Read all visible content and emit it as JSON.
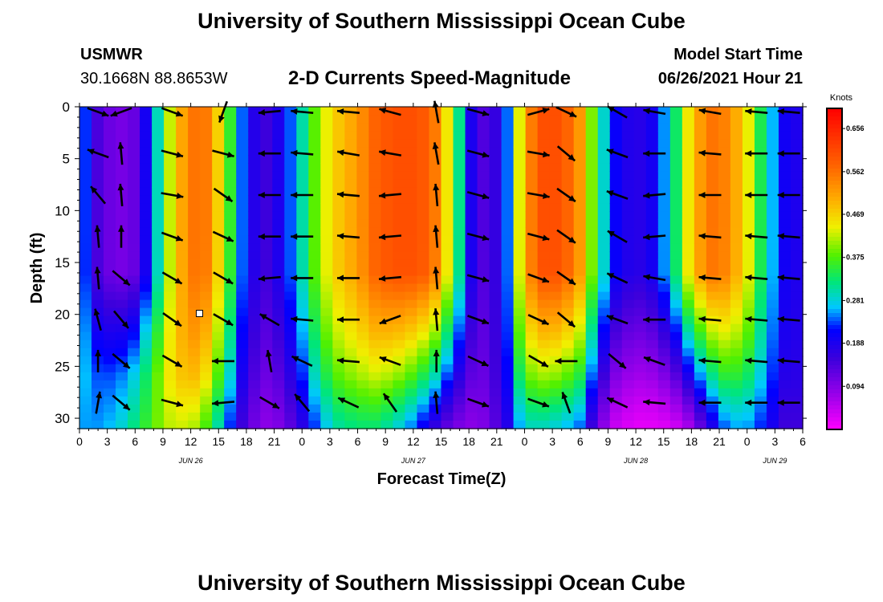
{
  "page": {
    "title": "University of Southern Mississippi Ocean Cube",
    "footer_title": "University of Southern Mississippi Ocean Cube",
    "station": "USMWR",
    "location": "30.1668N  88.8653W",
    "plot_title": "2-D Currents Speed-Magnitude",
    "model_start_label": "Model Start Time",
    "model_start_value": "06/26/2021 Hour 21"
  },
  "chart_data": {
    "type": "heatmap",
    "title": "2-D Currents Speed-Magnitude",
    "xlabel": "Forecast Time(Z)",
    "ylabel": "Depth (ft)",
    "x_ticks": [
      "0",
      "3",
      "6",
      "9",
      "12",
      "15",
      "18",
      "21",
      "0",
      "3",
      "6",
      "9",
      "12",
      "15",
      "18",
      "21",
      "0",
      "3",
      "6",
      "9",
      "12",
      "15",
      "18",
      "21",
      "0",
      "3",
      "6"
    ],
    "date_labels": [
      {
        "label": "JUN 26",
        "hour": 12
      },
      {
        "label": "JUN 27",
        "hour": 36
      },
      {
        "label": "JUN 28",
        "hour": 60
      },
      {
        "label": "JUN 29",
        "hour": 75
      }
    ],
    "y_ticks": [
      0,
      5,
      10,
      15,
      20,
      25,
      30
    ],
    "ylim": [
      0,
      31
    ],
    "xlim_hours": [
      0,
      78
    ],
    "colorbar": {
      "label": "Knots",
      "ticks": [
        "0.656",
        "0.562",
        "0.469",
        "0.375",
        "0.281",
        "0.188",
        "0.094"
      ],
      "min": 0.0,
      "max": 0.7
    },
    "time_hours": [
      0,
      2,
      4,
      6,
      8,
      10,
      12,
      14,
      16,
      18,
      20,
      22,
      24,
      26,
      28,
      30,
      32,
      34,
      36,
      38,
      40,
      42,
      44,
      46,
      48,
      50,
      52,
      54,
      56,
      58,
      60,
      62,
      64,
      66,
      68,
      70,
      72,
      74,
      76,
      78
    ],
    "surface_speed": [
      0.27,
      0.14,
      0.1,
      0.12,
      0.25,
      0.45,
      0.56,
      0.55,
      0.38,
      0.2,
      0.15,
      0.2,
      0.3,
      0.42,
      0.48,
      0.52,
      0.58,
      0.6,
      0.6,
      0.58,
      0.42,
      0.2,
      0.12,
      0.22,
      0.52,
      0.6,
      0.6,
      0.52,
      0.32,
      0.2,
      0.17,
      0.2,
      0.3,
      0.48,
      0.56,
      0.54,
      0.45,
      0.3,
      0.2,
      0.18
    ],
    "bottom_speed": [
      0.3,
      0.3,
      0.32,
      0.38,
      0.45,
      0.5,
      0.5,
      0.42,
      0.28,
      0.15,
      0.1,
      0.12,
      0.2,
      0.3,
      0.36,
      0.38,
      0.38,
      0.34,
      0.28,
      0.2,
      0.13,
      0.1,
      0.12,
      0.2,
      0.34,
      0.34,
      0.32,
      0.28,
      0.12,
      0.04,
      0.02,
      0.02,
      0.03,
      0.08,
      0.2,
      0.3,
      0.3,
      0.25,
      0.18,
      0.18
    ],
    "depth_profile": [
      0,
      6,
      12,
      18,
      22,
      26,
      29,
      31
    ],
    "depth_factor": [
      1.0,
      1.0,
      1.0,
      0.97,
      0.94,
      0.82,
      0.55,
      0.4
    ],
    "arrow_times": [
      2,
      4.5,
      10,
      15.5,
      20.5,
      24,
      29,
      33.5,
      38.5,
      43,
      49.5,
      52.5,
      58,
      62,
      68,
      73,
      76.5
    ],
    "arrow_depths": [
      0.5,
      4.5,
      8.5,
      12.5,
      16.5,
      20.5,
      24.5,
      28.5
    ],
    "arrow_angle_deg": [
      [
        20,
        160,
        20,
        110,
        175,
        185,
        185,
        195,
        260,
        15,
        345,
        25,
        210,
        190,
        190,
        185,
        185
      ],
      [
        200,
        265,
        15,
        15,
        180,
        185,
        190,
        190,
        260,
        15,
        10,
        40,
        200,
        180,
        185,
        180,
        180
      ],
      [
        230,
        265,
        10,
        35,
        180,
        180,
        185,
        175,
        265,
        15,
        10,
        35,
        200,
        175,
        180,
        180,
        180
      ],
      [
        265,
        270,
        20,
        25,
        180,
        180,
        185,
        175,
        265,
        15,
        15,
        35,
        210,
        175,
        185,
        185,
        185
      ],
      [
        265,
        40,
        30,
        30,
        175,
        180,
        180,
        175,
        265,
        15,
        20,
        35,
        205,
        190,
        185,
        185,
        185
      ],
      [
        255,
        50,
        35,
        30,
        210,
        185,
        180,
        160,
        265,
        20,
        25,
        40,
        200,
        180,
        185,
        185,
        185
      ],
      [
        270,
        40,
        30,
        180,
        260,
        205,
        185,
        200,
        270,
        25,
        30,
        180,
        40,
        200,
        185,
        185,
        185
      ],
      [
        280,
        40,
        15,
        175,
        30,
        230,
        205,
        235,
        265,
        20,
        20,
        250,
        205,
        185,
        180,
        180,
        180
      ]
    ]
  }
}
